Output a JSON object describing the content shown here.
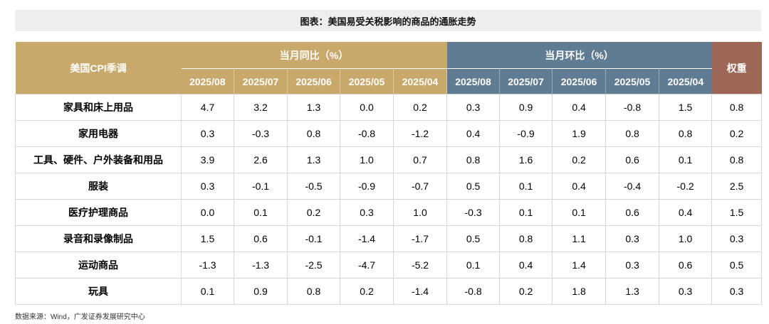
{
  "title": "图表：美国易受关税影响的商品的通胀走势",
  "header": {
    "corner": "美国CPI季调",
    "group_yoy": "当月同比（%）",
    "group_mom": "当月环比（%）",
    "weight": "权重",
    "months": [
      "2025/08",
      "2025/07",
      "2025/06",
      "2025/05",
      "2025/04"
    ]
  },
  "colors": {
    "gold": "#c9a96b",
    "slate": "#607c93",
    "brown": "#9e6654"
  },
  "rows": [
    {
      "label": "家具和床上用品",
      "yoy": [
        "4.7",
        "3.2",
        "1.3",
        "0.0",
        "0.2"
      ],
      "mom": [
        "0.3",
        "0.9",
        "0.4",
        "-0.8",
        "1.5"
      ],
      "weight": "0.8"
    },
    {
      "label": "家用电器",
      "yoy": [
        "0.3",
        "-0.3",
        "0.8",
        "-0.8",
        "-1.2"
      ],
      "mom": [
        "0.4",
        "-0.9",
        "1.9",
        "0.8",
        "0.8"
      ],
      "weight": "0.2"
    },
    {
      "label": "工具、硬件、户外装备和用品",
      "yoy": [
        "3.9",
        "2.6",
        "1.3",
        "1.0",
        "0.7"
      ],
      "mom": [
        "0.8",
        "1.6",
        "0.2",
        "0.6",
        "0.1"
      ],
      "weight": "0.8"
    },
    {
      "label": "服装",
      "yoy": [
        "0.3",
        "-0.1",
        "-0.5",
        "-0.9",
        "-0.7"
      ],
      "mom": [
        "0.5",
        "0.1",
        "0.4",
        "-0.4",
        "-0.2"
      ],
      "weight": "2.5"
    },
    {
      "label": "医疗护理商品",
      "yoy": [
        "0.0",
        "0.1",
        "0.2",
        "0.3",
        "1.0"
      ],
      "mom": [
        "-0.3",
        "0.1",
        "0.1",
        "0.6",
        "0.4"
      ],
      "weight": "1.5"
    },
    {
      "label": "录音和录像制品",
      "yoy": [
        "1.5",
        "0.6",
        "-0.1",
        "-1.4",
        "-1.7"
      ],
      "mom": [
        "0.5",
        "0.8",
        "1.1",
        "0.3",
        "1.0"
      ],
      "weight": "0.3"
    },
    {
      "label": "运动商品",
      "yoy": [
        "-1.3",
        "-1.3",
        "-2.5",
        "-4.7",
        "-5.2"
      ],
      "mom": [
        "0.1",
        "0.4",
        "1.4",
        "0.3",
        "0.6"
      ],
      "weight": "0.5"
    },
    {
      "label": "玩具",
      "yoy": [
        "0.1",
        "0.9",
        "0.8",
        "0.2",
        "-1.4"
      ],
      "mom": [
        "-0.8",
        "0.2",
        "1.8",
        "1.3",
        "0.3"
      ],
      "weight": "0.3"
    }
  ],
  "source": "数据来源：Wind，广发证券发展研究中心"
}
